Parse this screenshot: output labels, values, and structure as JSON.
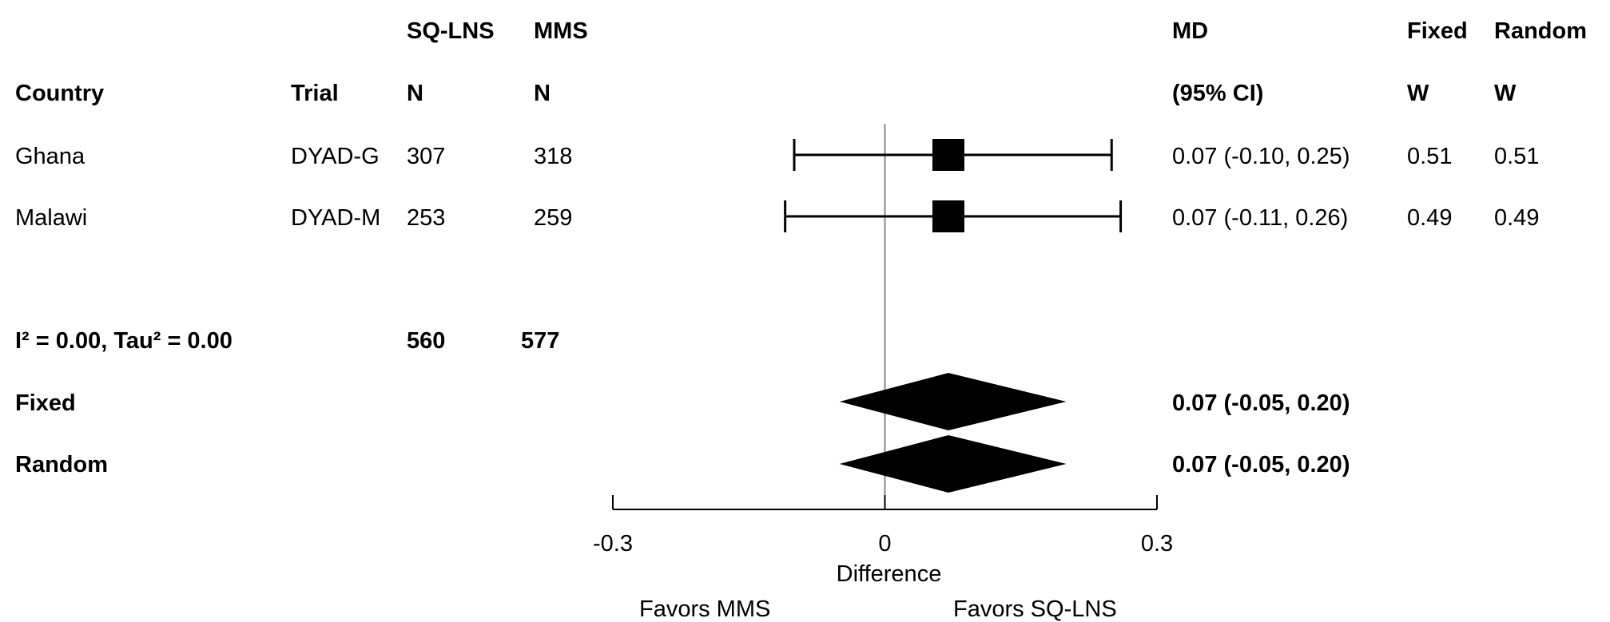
{
  "chart_data": {
    "type": "forest",
    "headers": {
      "group_top": [
        "SQ-LNS",
        "MMS"
      ],
      "country": "Country",
      "trial": "Trial",
      "n_a": "N",
      "n_b": "N",
      "md_top": "MD",
      "md_bottom": "(95% CI)",
      "fixed_top": "Fixed",
      "random_top": "Random",
      "w_fixed": "W",
      "w_random": "W"
    },
    "studies": [
      {
        "country": "Ghana",
        "trial": "DYAD-G",
        "n_a": "307",
        "n_b": "318",
        "md": 0.07,
        "lo": -0.1,
        "hi": 0.25,
        "ci_text": "0.07 (-0.10, 0.25)",
        "w_fixed": "0.51",
        "w_random": "0.51"
      },
      {
        "country": "Malawi",
        "trial": "DYAD-M",
        "n_a": "253",
        "n_b": "259",
        "md": 0.07,
        "lo": -0.11,
        "hi": 0.26,
        "ci_text": "0.07 (-0.11, 0.26)",
        "w_fixed": "0.49",
        "w_random": "0.49"
      }
    ],
    "heterogeneity": "I² = 0.00, Tau² = 0.00",
    "totals": {
      "n_a": "560",
      "n_b": "577"
    },
    "pooled": [
      {
        "label": "Fixed",
        "md": 0.07,
        "lo": -0.05,
        "hi": 0.2,
        "ci_text": "0.07 (-0.05, 0.20)"
      },
      {
        "label": "Random",
        "md": 0.07,
        "lo": -0.05,
        "hi": 0.2,
        "ci_text": "0.07 (-0.05, 0.20)"
      }
    ],
    "x_axis": {
      "min": -0.3,
      "max": 0.3,
      "ticks": [
        "-0.3",
        "0",
        "0.3"
      ],
      "label": "Difference"
    },
    "favors": {
      "left": "Favors MMS",
      "right": "Favors SQ-LNS"
    }
  }
}
